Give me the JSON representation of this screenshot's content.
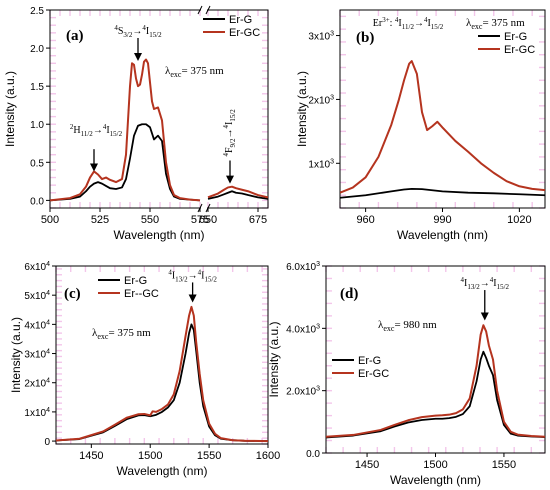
{
  "colors": {
    "er_g": "#000000",
    "er_gc": "#b5341f",
    "pink": "#f3c6ea"
  },
  "chart_data": [
    {
      "id": "a",
      "type": "line",
      "panel_label": "(a)",
      "xlabel": "Wavelength (nm)",
      "ylabel": "Intensity (a.u.)",
      "broken_x_axis": true,
      "x_segments": [
        [
          500,
          575
        ],
        [
          650,
          680
        ]
      ],
      "ylim": [
        -0.1,
        2.5
      ],
      "xticks": [
        500,
        525,
        550,
        575,
        650,
        675
      ],
      "yticks": [
        0.0,
        0.5,
        1.0,
        1.5,
        2.0,
        2.5
      ],
      "ytick_labels": [
        "0.0",
        "0.5",
        "1.0",
        "1.5",
        "2.0",
        "2.5"
      ],
      "legend_position": "top-right",
      "excitation_label": "λexc= 375 nm",
      "annotations": [
        {
          "text": "4S3/2→4I15/2",
          "x": 544,
          "y": 2.08
        },
        {
          "text": "2H11/2→4I15/2",
          "x": 522,
          "y": 0.62
        },
        {
          "text": "4F9/2→4I15/2",
          "x": 661,
          "y": 0.55
        }
      ],
      "series": [
        {
          "name": "Er-G",
          "color_key": "er_g",
          "x": [
            500,
            510,
            515,
            518,
            520,
            522,
            524,
            526,
            528,
            530,
            533,
            536,
            538,
            540,
            542,
            544,
            546,
            548,
            550,
            552,
            554,
            556,
            558,
            560,
            562,
            565,
            570,
            575,
            650,
            655,
            658,
            660,
            662,
            664,
            667,
            670,
            675,
            680
          ],
          "y": [
            0.0,
            0.02,
            0.05,
            0.12,
            0.18,
            0.22,
            0.24,
            0.22,
            0.19,
            0.16,
            0.15,
            0.17,
            0.28,
            0.55,
            0.85,
            0.98,
            1.0,
            1.0,
            0.96,
            0.8,
            0.85,
            0.78,
            0.35,
            0.15,
            0.05,
            0.02,
            0.01,
            0.0,
            0.02,
            0.05,
            0.08,
            0.1,
            0.12,
            0.1,
            0.09,
            0.07,
            0.04,
            0.02
          ]
        },
        {
          "name": "Er-GC",
          "color_key": "er_gc",
          "x": [
            500,
            510,
            515,
            518,
            520,
            522,
            524,
            526,
            528,
            530,
            533,
            536,
            538,
            540,
            541,
            542,
            543,
            544,
            545,
            546,
            547,
            548,
            549,
            550,
            551,
            552,
            554,
            556,
            558,
            560,
            562,
            565,
            570,
            575,
            650,
            655,
            658,
            660,
            662,
            664,
            667,
            670,
            675,
            680
          ],
          "y": [
            0.0,
            0.03,
            0.08,
            0.18,
            0.3,
            0.38,
            0.34,
            0.28,
            0.3,
            0.27,
            0.24,
            0.28,
            0.6,
            1.5,
            1.8,
            1.78,
            1.6,
            1.5,
            1.52,
            1.65,
            1.82,
            1.85,
            1.8,
            1.55,
            1.3,
            1.2,
            1.22,
            1.05,
            0.5,
            0.2,
            0.07,
            0.03,
            0.01,
            0.0,
            0.04,
            0.09,
            0.14,
            0.17,
            0.18,
            0.16,
            0.14,
            0.12,
            0.07,
            0.04
          ]
        }
      ]
    },
    {
      "id": "b",
      "type": "line",
      "panel_label": "(b)",
      "xlabel": "Wavelength (nm)",
      "ylabel": "Intensity (a.u.)",
      "xlim": [
        950,
        1030
      ],
      "ylim": [
        300,
        3400
      ],
      "xticks": [
        960,
        990,
        1020
      ],
      "yticks": [
        1000,
        2000,
        3000
      ],
      "ytick_labels": [
        "1x10³",
        "2x10³",
        "3x10³"
      ],
      "legend_position": "top-right",
      "excitation_label": "λexc= 375 nm",
      "annotations": [
        {
          "text": "Er3+: 4I11/2→4I15/2",
          "x": 980,
          "y": 3200
        }
      ],
      "series": [
        {
          "name": "Er-G",
          "color_key": "er_g",
          "x": [
            950,
            960,
            970,
            975,
            978,
            982,
            990,
            1000,
            1010,
            1020,
            1030
          ],
          "y": [
            460,
            500,
            560,
            590,
            600,
            595,
            560,
            540,
            530,
            515,
            500
          ]
        },
        {
          "name": "Er-GC",
          "color_key": "er_gc",
          "x": [
            950,
            955,
            960,
            965,
            970,
            973,
            975,
            977,
            978,
            980,
            982,
            984,
            986,
            988,
            990,
            995,
            1000,
            1005,
            1010,
            1015,
            1020,
            1025,
            1030
          ],
          "y": [
            540,
            620,
            780,
            1100,
            1600,
            2000,
            2300,
            2560,
            2600,
            2400,
            1800,
            1520,
            1580,
            1650,
            1560,
            1350,
            1180,
            1000,
            850,
            720,
            640,
            600,
            580
          ]
        }
      ]
    },
    {
      "id": "c",
      "type": "line",
      "panel_label": "(c)",
      "xlabel": "Wavelength (nm)",
      "ylabel": "Intensity (a.u.)",
      "xlim": [
        1420,
        1600
      ],
      "ylim": [
        -1000,
        60000
      ],
      "xticks": [
        1450,
        1500,
        1550,
        1600
      ],
      "yticks": [
        0,
        10000,
        20000,
        30000,
        40000,
        50000,
        60000
      ],
      "ytick_labels": [
        "0",
        "1x10⁴",
        "2x10⁴",
        "3x10⁴",
        "4x10⁴",
        "5x10⁴",
        "6x10⁴"
      ],
      "legend_position": "top-left",
      "excitation_label": "λexc= 375 nm",
      "annotations": [
        {
          "text": "4I13/2→4I15/2",
          "x": 1536,
          "y": 53000
        }
      ],
      "series": [
        {
          "name": "Er-G",
          "color_key": "er_g",
          "x": [
            1420,
            1440,
            1460,
            1470,
            1480,
            1490,
            1495,
            1500,
            1505,
            1510,
            1515,
            1520,
            1525,
            1530,
            1533,
            1535,
            1537,
            1539,
            1542,
            1545,
            1550,
            1555,
            1560,
            1570,
            1580,
            1600
          ],
          "y": [
            200,
            700,
            3000,
            5200,
            7500,
            8800,
            8900,
            8500,
            9000,
            10000,
            11500,
            14000,
            20000,
            30000,
            37000,
            40000,
            38000,
            31000,
            20000,
            12000,
            5000,
            2000,
            800,
            300,
            100,
            0
          ]
        },
        {
          "name": "Er--GC",
          "color_key": "er_gc",
          "x": [
            1420,
            1440,
            1460,
            1470,
            1480,
            1490,
            1495,
            1500,
            1502,
            1505,
            1510,
            1515,
            1520,
            1525,
            1530,
            1533,
            1535,
            1537,
            1539,
            1542,
            1545,
            1550,
            1555,
            1560,
            1570,
            1580,
            1600
          ],
          "y": [
            200,
            800,
            3300,
            5600,
            8000,
            9200,
            9300,
            8800,
            10200,
            10000,
            11000,
            12500,
            16000,
            24000,
            36000,
            43000,
            46000,
            43000,
            34000,
            23000,
            14000,
            6000,
            2500,
            1000,
            300,
            100,
            0
          ]
        }
      ]
    },
    {
      "id": "d",
      "type": "line",
      "panel_label": "(d)",
      "xlabel": "Wavelength (nm)",
      "ylabel": "Intensity (a.u.)",
      "xlim": [
        1420,
        1580
      ],
      "ylim": [
        0,
        6000
      ],
      "xticks": [
        1450,
        1500,
        1550
      ],
      "yticks": [
        0,
        2000,
        4000,
        6000
      ],
      "ytick_labels": [
        "0.0",
        "2.0x10³",
        "4.0x10³",
        "6.0x10³"
      ],
      "legend_position": "bottom-left",
      "excitation_label": "λexc= 980 nm",
      "annotations": [
        {
          "text": "4I13/2→4I15/2",
          "x": 1536,
          "y": 5100
        }
      ],
      "series": [
        {
          "name": "Er-G",
          "color_key": "er_g",
          "x": [
            1420,
            1440,
            1460,
            1470,
            1480,
            1490,
            1500,
            1505,
            1510,
            1515,
            1520,
            1525,
            1530,
            1533,
            1535,
            1537,
            1539,
            1542,
            1545,
            1550,
            1555,
            1560,
            1570,
            1580
          ],
          "y": [
            500,
            560,
            700,
            850,
            980,
            1060,
            1100,
            1100,
            1120,
            1160,
            1250,
            1500,
            2300,
            3000,
            3250,
            3050,
            2800,
            2500,
            1700,
            900,
            620,
            560,
            530,
            510
          ]
        },
        {
          "name": "Er-GC",
          "color_key": "er_gc",
          "x": [
            1420,
            1440,
            1460,
            1470,
            1480,
            1490,
            1500,
            1505,
            1510,
            1515,
            1520,
            1525,
            1530,
            1533,
            1535,
            1537,
            1539,
            1542,
            1545,
            1550,
            1555,
            1560,
            1570,
            1580
          ],
          "y": [
            520,
            580,
            740,
            900,
            1050,
            1150,
            1200,
            1210,
            1230,
            1280,
            1400,
            1750,
            2800,
            3800,
            4100,
            3900,
            3450,
            3000,
            2000,
            1000,
            680,
            590,
            545,
            520
          ]
        }
      ]
    }
  ]
}
